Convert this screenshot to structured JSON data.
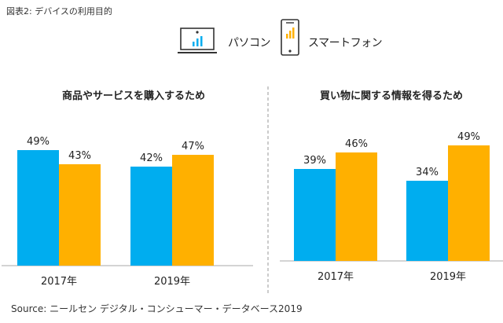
{
  "figure_title": "図表2: デバイスの利用目的",
  "legend": [
    {
      "name": "パソコン",
      "icon": "laptop-icon",
      "color": "#00adef"
    },
    {
      "name": "スマートフォン",
      "icon": "smartphone-icon",
      "color": "#ffb000"
    }
  ],
  "source": "Source: ニールセン デジタル・コンシューマー・データベース2019",
  "chart_data": [
    {
      "type": "bar",
      "title": "商品やサービスを購入するため",
      "categories": [
        "2017年",
        "2019年"
      ],
      "series": [
        {
          "name": "パソコン",
          "values": [
            49,
            42
          ],
          "labels": [
            "49%",
            "42%"
          ],
          "color": "#00adef"
        },
        {
          "name": "スマートフォン",
          "values": [
            43,
            47
          ],
          "labels": [
            "43%",
            "47%"
          ],
          "color": "#ffb000"
        }
      ],
      "ylim": [
        0,
        100
      ],
      "grid": false
    },
    {
      "type": "bar",
      "title": "買い物に関する情報を得るため",
      "categories": [
        "2017年",
        "2019年"
      ],
      "series": [
        {
          "name": "パソコン",
          "values": [
            39,
            34
          ],
          "labels": [
            "39%",
            "34%"
          ],
          "color": "#00adef"
        },
        {
          "name": "スマートフォン",
          "values": [
            46,
            49
          ],
          "labels": [
            "46%",
            "49%"
          ],
          "color": "#ffb000"
        }
      ],
      "ylim": [
        0,
        100
      ],
      "grid": false
    }
  ]
}
